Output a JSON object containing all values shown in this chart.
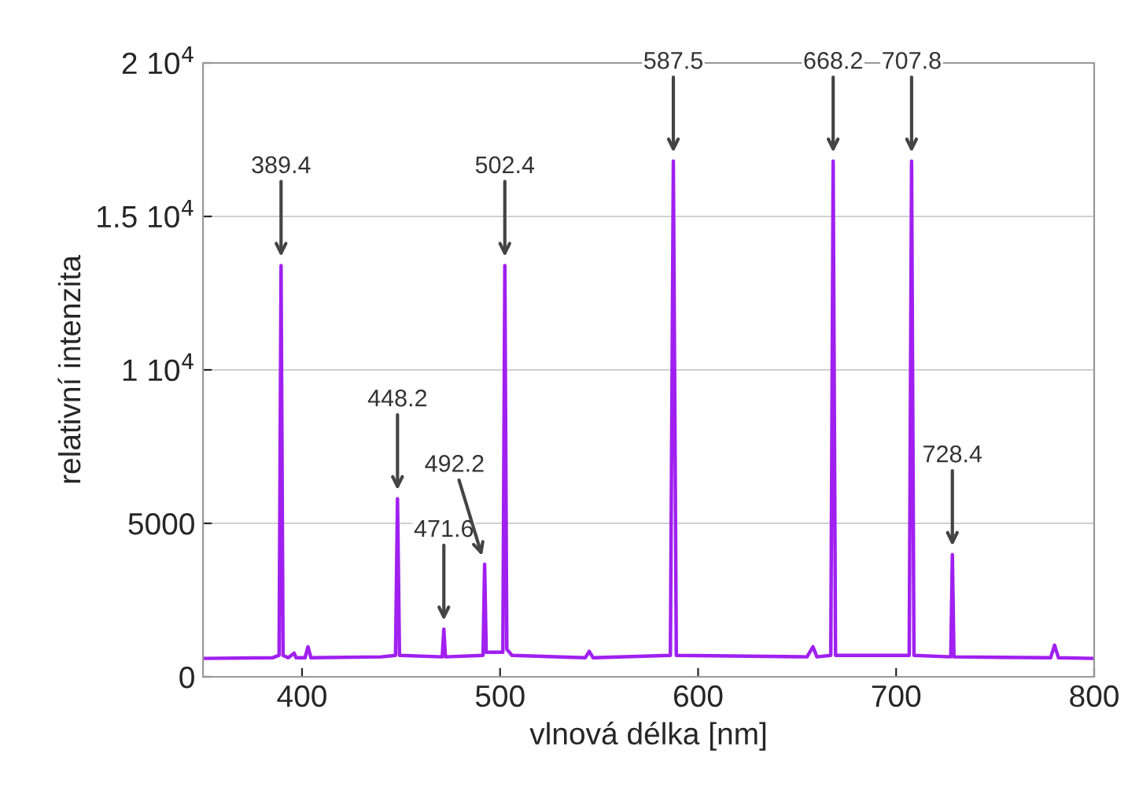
{
  "chart_data": {
    "type": "line",
    "xlabel": "vlnová délka [nm]",
    "ylabel": "relativní intenzita",
    "x": [
      350,
      385,
      388.4,
      389.4,
      390.4,
      393,
      396,
      397,
      401.5,
      403,
      404.5,
      440,
      447.2,
      448.2,
      449.2,
      470.8,
      471.6,
      472.4,
      491.4,
      492.2,
      493,
      501.4,
      502.4,
      503.4,
      506,
      543,
      545,
      547,
      586,
      587.5,
      589,
      655,
      658,
      660,
      667,
      668.2,
      669.4,
      706.6,
      707.8,
      709,
      727.6,
      728.4,
      729.2,
      778,
      780,
      782,
      800
    ],
    "series": [
      {
        "color": "#a020f0",
        "values": [
          600,
          620,
          700,
          13400,
          700,
          620,
          770,
          620,
          620,
          980,
          620,
          650,
          700,
          5800,
          700,
          650,
          1550,
          650,
          700,
          3670,
          800,
          800,
          13400,
          900,
          700,
          620,
          830,
          620,
          700,
          16800,
          700,
          650,
          980,
          650,
          700,
          16800,
          700,
          700,
          16800,
          700,
          650,
          3980,
          650,
          620,
          1030,
          620,
          600
        ]
      }
    ],
    "xlim": [
      350,
      800
    ],
    "xticks": [
      400,
      500,
      600,
      700,
      800
    ],
    "ylim": [
      0,
      20000
    ],
    "yticks": [
      0,
      5000,
      {
        "value": 10000,
        "label": "1 10$^{4}$"
      },
      {
        "value": 15000,
        "label": "1.5 10$^{4}$"
      },
      {
        "value": 20000,
        "label": "2 10$^{4}$"
      }
    ],
    "grid": "y",
    "legend": false,
    "marker": "none",
    "line_style": "solid",
    "annotations": [
      {
        "text": "389.4",
        "x": 389.4,
        "y": 13400
      },
      {
        "text": "448.2",
        "x": 448.2,
        "y": 5800
      },
      {
        "text": "471.6",
        "x": 471.6,
        "y": 1550
      },
      {
        "text": "492.2",
        "x": 492.2,
        "y": 3670
      },
      {
        "text": "502.4",
        "x": 502.4,
        "y": 13400
      },
      {
        "text": "587.5",
        "x": 587.5,
        "y": 16800
      },
      {
        "text": "668.2",
        "x": 668.2,
        "y": 16800
      },
      {
        "text": "707.8",
        "x": 707.8,
        "y": 16800
      },
      {
        "text": "728.4",
        "x": 728.4,
        "y": 3980
      }
    ]
  }
}
